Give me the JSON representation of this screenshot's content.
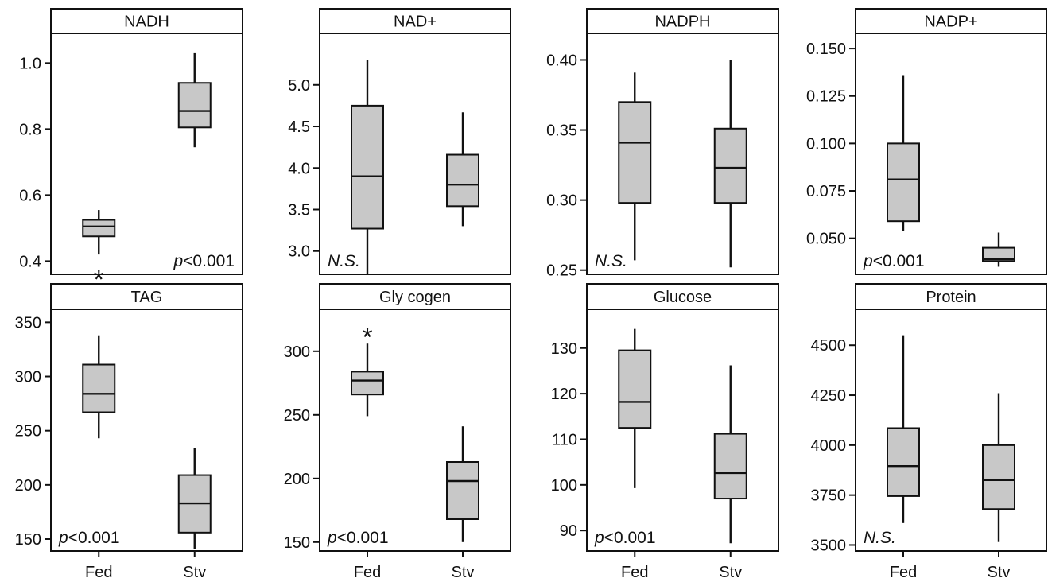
{
  "chart_data": [
    {
      "type": "box",
      "title": "NADH",
      "categories": [
        "Fed",
        "Stv"
      ],
      "ylim": [
        0.36,
        1.09
      ],
      "yticks": [
        0.4,
        0.6,
        0.8,
        1.0
      ],
      "ytick_labels": [
        "0.4",
        "0.6",
        "0.8",
        "1.0"
      ],
      "boxes": [
        {
          "whisker_low": 0.42,
          "q1": 0.475,
          "median": 0.505,
          "q3": 0.525,
          "whisker_high": 0.555
        },
        {
          "whisker_low": 0.745,
          "q1": 0.805,
          "median": 0.855,
          "q3": 0.94,
          "whisker_high": 1.03
        }
      ],
      "outliers": [
        {
          "category": "Fed",
          "y": 0.355,
          "marker": "*"
        }
      ],
      "annotation": "p<0.001",
      "annotation_parts": [
        "p",
        "<0.001"
      ],
      "annotation_pos": "bottom-right",
      "show_xticks": false
    },
    {
      "type": "box",
      "title": "NAD+",
      "categories": [
        "Fed",
        "Stv"
      ],
      "ylim": [
        2.72,
        5.62
      ],
      "yticks": [
        3.0,
        3.5,
        4.0,
        4.5,
        5.0
      ],
      "ytick_labels": [
        "3.0",
        "3.5",
        "4.0",
        "4.5",
        "5.0"
      ],
      "boxes": [
        {
          "whisker_low": 2.72,
          "q1": 3.27,
          "median": 3.9,
          "q3": 4.75,
          "whisker_high": 5.3
        },
        {
          "whisker_low": 3.3,
          "q1": 3.54,
          "median": 3.8,
          "q3": 4.16,
          "whisker_high": 4.67
        }
      ],
      "annotation": "N.S.",
      "annotation_pos": "bottom-left",
      "show_xticks": false
    },
    {
      "type": "box",
      "title": "NADPH",
      "categories": [
        "Fed",
        "Stv"
      ],
      "ylim": [
        0.247,
        0.419
      ],
      "yticks": [
        0.25,
        0.3,
        0.35,
        0.4
      ],
      "ytick_labels": [
        "0.25",
        "0.30",
        "0.35",
        "0.40"
      ],
      "boxes": [
        {
          "whisker_low": 0.257,
          "q1": 0.298,
          "median": 0.341,
          "q3": 0.37,
          "whisker_high": 0.391
        },
        {
          "whisker_low": 0.252,
          "q1": 0.298,
          "median": 0.323,
          "q3": 0.351,
          "whisker_high": 0.4
        }
      ],
      "annotation": "N.S.",
      "annotation_pos": "bottom-left",
      "show_xticks": false
    },
    {
      "type": "box",
      "title": "NADP+",
      "categories": [
        "Fed",
        "Stv"
      ],
      "ylim": [
        0.031,
        0.158
      ],
      "yticks": [
        0.05,
        0.075,
        0.1,
        0.125,
        0.15
      ],
      "ytick_labels": [
        "0.050",
        "0.075",
        "0.100",
        "0.125",
        "0.150"
      ],
      "boxes": [
        {
          "whisker_low": 0.054,
          "q1": 0.059,
          "median": 0.081,
          "q3": 0.1,
          "whisker_high": 0.136
        },
        {
          "whisker_low": 0.035,
          "q1": 0.038,
          "median": 0.039,
          "q3": 0.045,
          "whisker_high": 0.053
        }
      ],
      "annotation": "p<0.001",
      "annotation_parts": [
        "p",
        "<0.001"
      ],
      "annotation_pos": "bottom-left",
      "show_xticks": false
    },
    {
      "type": "box",
      "title": "TAG",
      "categories": [
        "Fed",
        "Stv"
      ],
      "ylim": [
        139,
        362
      ],
      "yticks": [
        150,
        200,
        250,
        300,
        350
      ],
      "ytick_labels": [
        "150",
        "200",
        "250",
        "300",
        "350"
      ],
      "boxes": [
        {
          "whisker_low": 243,
          "q1": 267,
          "median": 284,
          "q3": 311,
          "whisker_high": 338
        },
        {
          "whisker_low": 141,
          "q1": 156,
          "median": 183,
          "q3": 209,
          "whisker_high": 234
        }
      ],
      "annotation": "p<0.001",
      "annotation_parts": [
        "p",
        "<0.001"
      ],
      "annotation_pos": "bottom-left",
      "show_xticks": true
    },
    {
      "type": "box",
      "title": "Gly cogen",
      "categories": [
        "Fed",
        "Stv"
      ],
      "ylim": [
        143,
        333
      ],
      "yticks": [
        150,
        200,
        250,
        300
      ],
      "ytick_labels": [
        "150",
        "200",
        "250",
        "300"
      ],
      "boxes": [
        {
          "whisker_low": 249,
          "q1": 266,
          "median": 277,
          "q3": 284,
          "whisker_high": 306
        },
        {
          "whisker_low": 150,
          "q1": 168,
          "median": 198,
          "q3": 213,
          "whisker_high": 241
        }
      ],
      "outliers": [
        {
          "category": "Fed",
          "y": 314,
          "marker": "*"
        }
      ],
      "annotation": "p<0.001",
      "annotation_parts": [
        "p",
        "<0.001"
      ],
      "annotation_pos": "bottom-left",
      "show_xticks": true
    },
    {
      "type": "box",
      "title": "Glucose",
      "categories": [
        "Fed",
        "Stv"
      ],
      "ylim": [
        85.5,
        138.5
      ],
      "yticks": [
        90,
        100,
        110,
        120,
        130
      ],
      "ytick_labels": [
        "90",
        "100",
        "110",
        "120",
        "130"
      ],
      "boxes": [
        {
          "whisker_low": 99.3,
          "q1": 112.5,
          "median": 118.2,
          "q3": 129.5,
          "whisker_high": 134.2
        },
        {
          "whisker_low": 87.2,
          "q1": 97.0,
          "median": 102.6,
          "q3": 111.2,
          "whisker_high": 126.2
        }
      ],
      "annotation": "p<0.001",
      "annotation_parts": [
        "p",
        "<0.001"
      ],
      "annotation_pos": "bottom-left",
      "show_xticks": true
    },
    {
      "type": "box",
      "title": "Protein",
      "categories": [
        "Fed",
        "Stv"
      ],
      "ylim": [
        3470,
        4680
      ],
      "yticks": [
        3500,
        3750,
        4000,
        4250,
        4500
      ],
      "ytick_labels": [
        "3500",
        "3750",
        "4000",
        "4250",
        "4500"
      ],
      "boxes": [
        {
          "whisker_low": 3610,
          "q1": 3745,
          "median": 3895,
          "q3": 4085,
          "whisker_high": 4550
        },
        {
          "whisker_low": 3515,
          "q1": 3680,
          "median": 3825,
          "q3": 4000,
          "whisker_high": 4260
        }
      ],
      "annotation": "N.S.",
      "annotation_pos": "bottom-left",
      "show_xticks": true
    }
  ]
}
